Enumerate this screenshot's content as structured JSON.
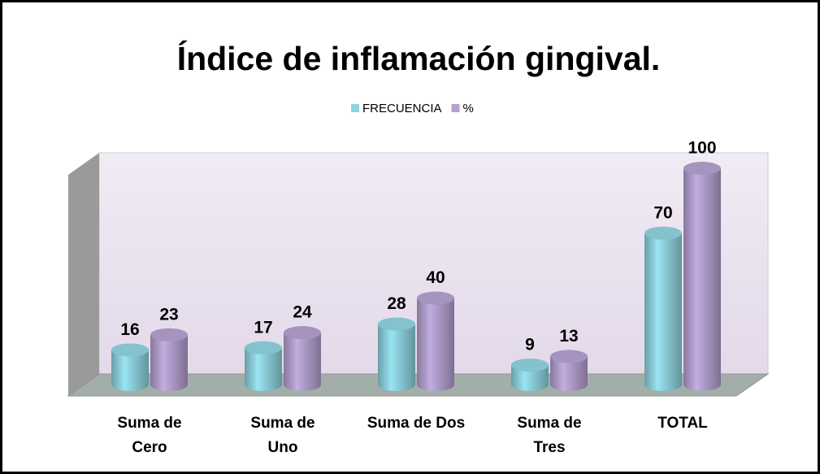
{
  "chart_data": {
    "type": "bar3d",
    "title": "Índice de inflamación gingival.",
    "categories": [
      "Suma de Cero",
      "Suma de Uno",
      "Suma de Dos",
      "Suma de Tres",
      "TOTAL"
    ],
    "series": [
      {
        "name": "FRECUENCIA",
        "color": "#8fd3e0",
        "values": [
          16,
          17,
          28,
          9,
          70
        ]
      },
      {
        "name": "%",
        "color": "#b4a0cf",
        "values": [
          23,
          24,
          40,
          13,
          100
        ]
      }
    ],
    "legend": "top"
  }
}
